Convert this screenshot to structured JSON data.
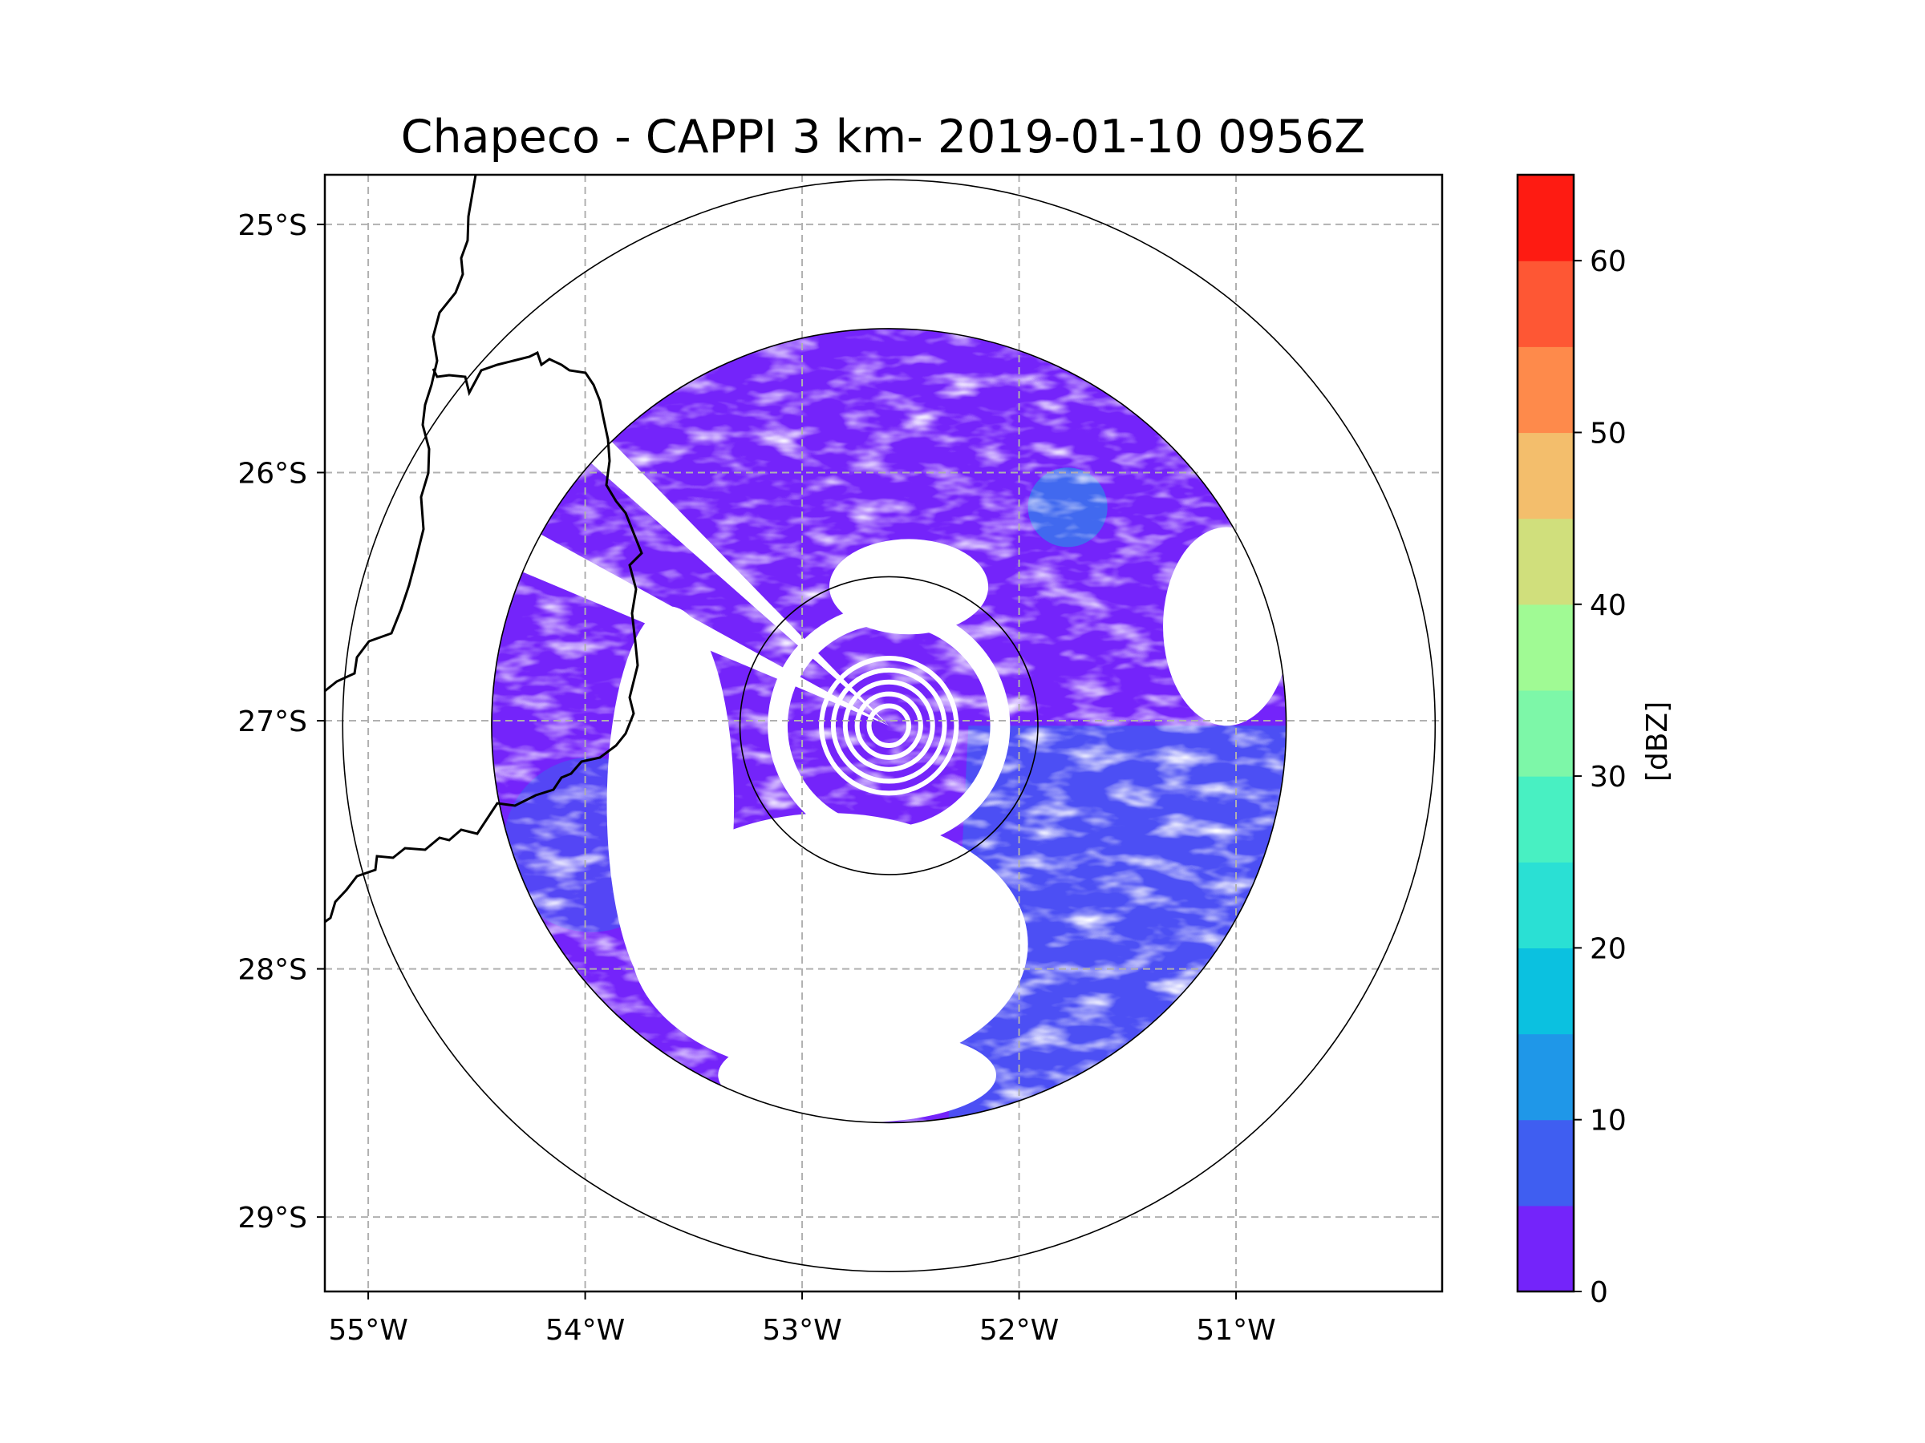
{
  "chart_data": {
    "type": "radar-map",
    "title": "Chapeco - CAPPI 3 km- 2019-01-10 0956Z",
    "radar_site": "Chapeco",
    "product": "CAPPI 3 km",
    "datetime": "2019-01-10 0956Z",
    "center": {
      "lon": -52.6,
      "lat": -27.02
    },
    "xlim": [
      -55.2,
      -50.05
    ],
    "ylim": [
      -29.3,
      -24.8
    ],
    "x_ticks": [
      {
        "value": -55,
        "label": "55°W"
      },
      {
        "value": -54,
        "label": "54°W"
      },
      {
        "value": -53,
        "label": "53°W"
      },
      {
        "value": -52,
        "label": "52°W"
      },
      {
        "value": -51,
        "label": "51°W"
      }
    ],
    "y_ticks": [
      {
        "value": -25,
        "label": "25°S"
      },
      {
        "value": -26,
        "label": "26°S"
      },
      {
        "value": -27,
        "label": "27°S"
      },
      {
        "value": -28,
        "label": "28°S"
      },
      {
        "value": -29,
        "label": "29°S"
      }
    ],
    "range_rings_deg_lat": [
      0.6,
      1.6,
      2.2
    ],
    "data_extent_deg_lat": 1.6,
    "grid": true,
    "colorbar": {
      "label": "[dBZ]",
      "min": 0,
      "max": 65,
      "ticks": [
        0,
        10,
        20,
        30,
        40,
        50,
        60
      ],
      "levels": [
        {
          "from": 0,
          "to": 5,
          "color": "#7424fa"
        },
        {
          "from": 5,
          "to": 10,
          "color": "#3f5ef1"
        },
        {
          "from": 10,
          "to": 15,
          "color": "#1f97e8"
        },
        {
          "from": 15,
          "to": 20,
          "color": "#0bc1e0"
        },
        {
          "from": 20,
          "to": 25,
          "color": "#2ae0d4"
        },
        {
          "from": 25,
          "to": 30,
          "color": "#48f0c2"
        },
        {
          "from": 30,
          "to": 35,
          "color": "#7df7a8"
        },
        {
          "from": 35,
          "to": 40,
          "color": "#a0fa94"
        },
        {
          "from": 40,
          "to": 45,
          "color": "#d0df7c"
        },
        {
          "from": 45,
          "to": 50,
          "color": "#f3be6c"
        },
        {
          "from": 50,
          "to": 55,
          "color": "#fe8a4b"
        },
        {
          "from": 55,
          "to": 60,
          "color": "#fe5734"
        },
        {
          "from": 60,
          "to": 65,
          "color": "#fe1b12"
        }
      ]
    }
  }
}
